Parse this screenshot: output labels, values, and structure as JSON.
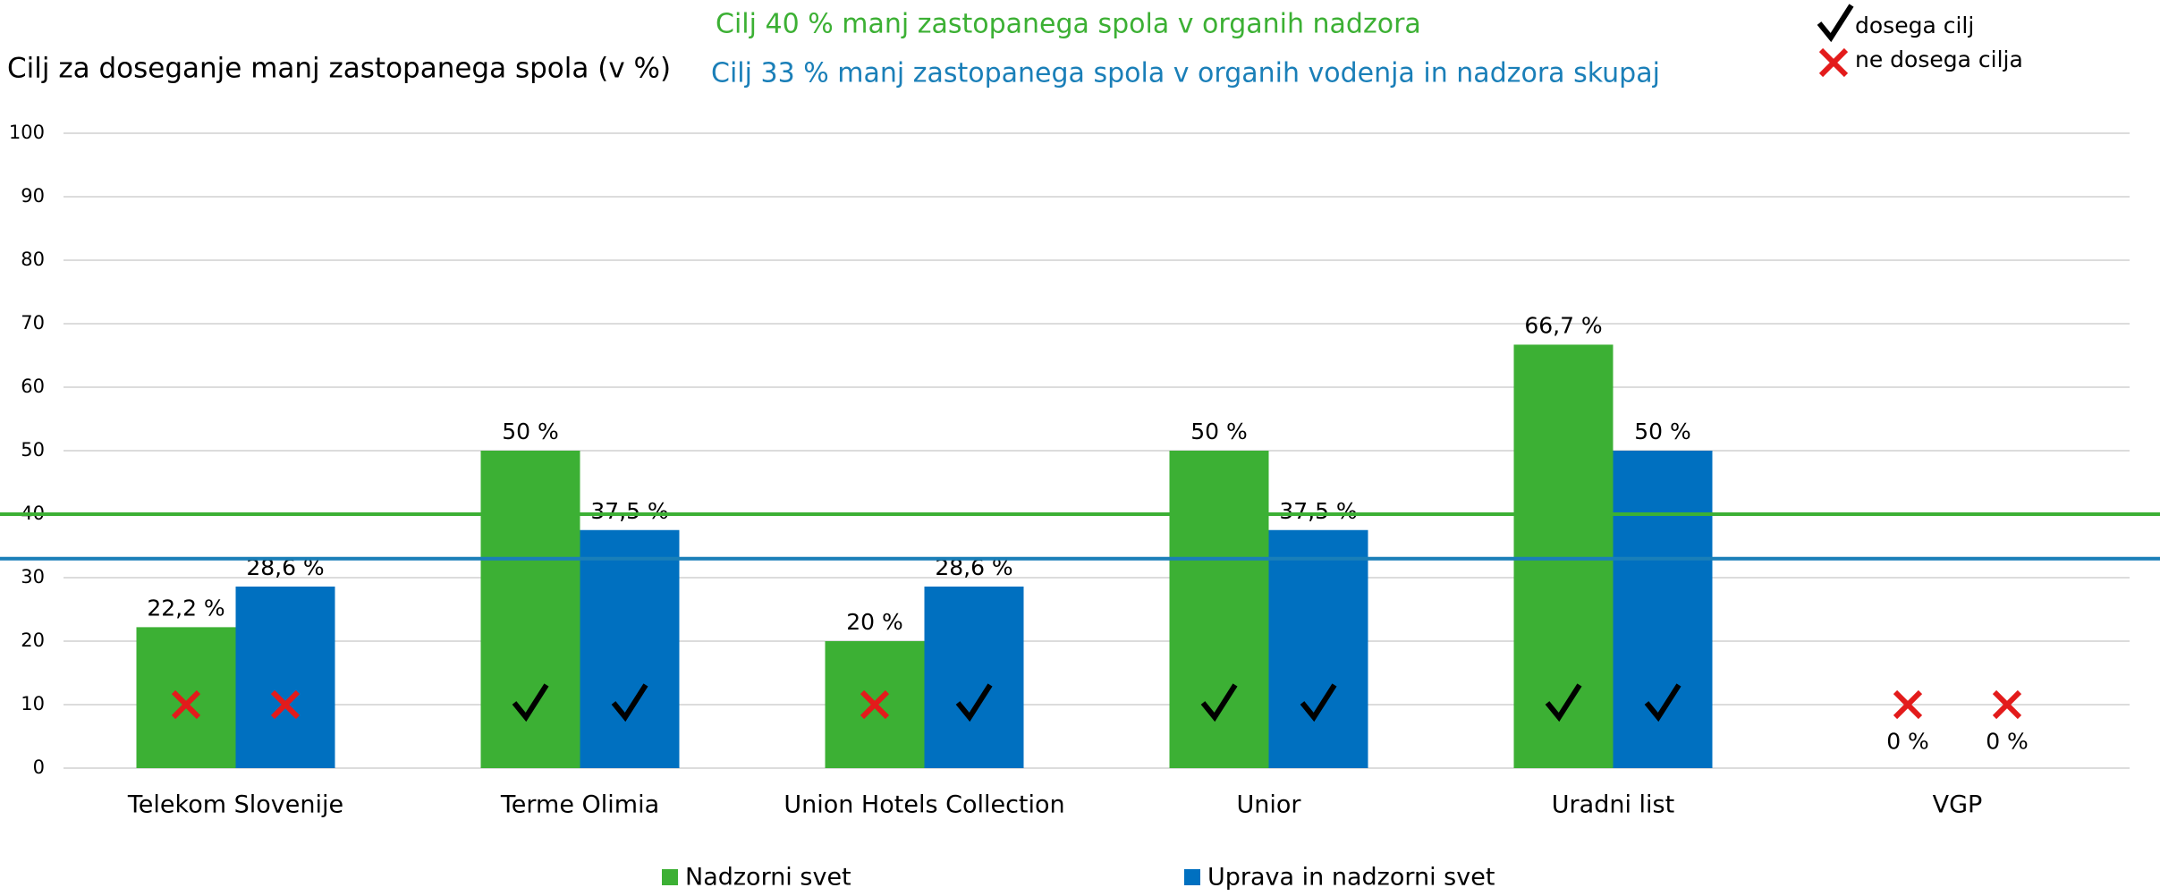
{
  "chart_data": {
    "type": "bar",
    "title": "Cilj za doseganje manj zastopanega spola (v %)",
    "categories": [
      "Telekom Slovenije",
      "Terme Olimia",
      "Union Hotels Collection",
      "Unior",
      "Uradni list",
      "VGP"
    ],
    "series": [
      {
        "name": "Nadzorni svet",
        "color": "#3cb034",
        "values": [
          22.2,
          50,
          20,
          50,
          66.7,
          0
        ],
        "value_labels": [
          "22,2 %",
          "50 %",
          "20 %",
          "50 %",
          "66,7 %",
          "0 %"
        ],
        "status": [
          false,
          true,
          false,
          true,
          true,
          false
        ]
      },
      {
        "name": "Uprava in nadzorni svet",
        "color": "#0070c0",
        "values": [
          28.6,
          37.5,
          28.6,
          37.5,
          50,
          0
        ],
        "value_labels": [
          "28,6 %",
          "37,5 %",
          "28,6 %",
          "37,5 %",
          "50 %",
          "0 %"
        ],
        "status": [
          false,
          true,
          true,
          true,
          true,
          false
        ]
      }
    ],
    "targets": [
      {
        "value": 40,
        "label": "Cilj 40 % manj zastopanega spola v organih nadzora",
        "color": "#3cb034"
      },
      {
        "value": 33,
        "label": "Cilj 33 % manj zastopanega spola v  organih vodenja in nadzora skupaj",
        "color": "#1a7fb8"
      }
    ],
    "status_legend": {
      "pass": "dosega cilj",
      "fail": "ne dosega cilja"
    },
    "ylim": [
      0,
      100
    ],
    "yticks": [
      0,
      10,
      20,
      30,
      40,
      50,
      60,
      70,
      80,
      90,
      100
    ],
    "grid": true
  }
}
